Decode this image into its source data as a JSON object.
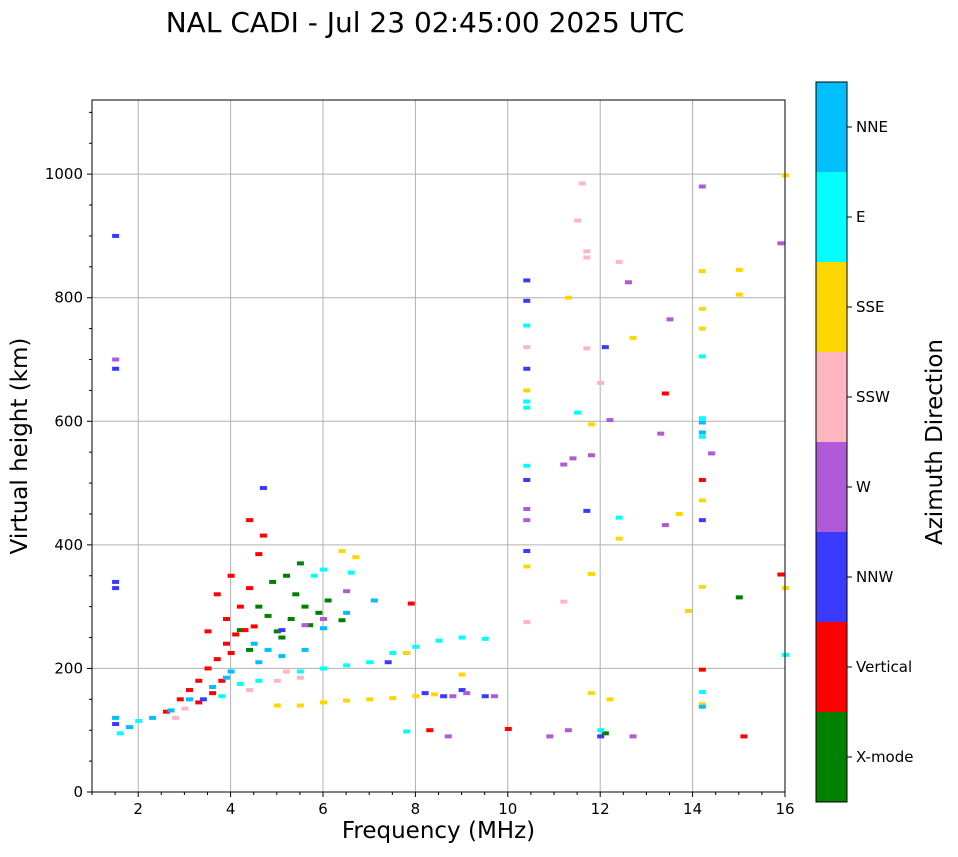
{
  "chart_data": {
    "type": "scatter",
    "title": "NAL CADI - Jul 23 02:45:00 2025 UTC",
    "xlabel": "Frequency (MHz)",
    "ylabel": "Virtual height (km)",
    "xlim": [
      1,
      16
    ],
    "ylim": [
      0,
      1120
    ],
    "xticks": [
      2,
      4,
      6,
      8,
      10,
      12,
      14,
      16
    ],
    "yticks": [
      0,
      200,
      400,
      600,
      800,
      1000
    ],
    "grid": true,
    "colorbar": {
      "label": "Azimuth Direction",
      "categories": [
        {
          "name": "X-mode",
          "color": "#008000"
        },
        {
          "name": "Vertical",
          "color": "#ff0000"
        },
        {
          "name": "NNW",
          "color": "#3a3aff"
        },
        {
          "name": "W",
          "color": "#b05ad8"
        },
        {
          "name": "SSW",
          "color": "#ffb6c1"
        },
        {
          "name": "SSE",
          "color": "#ffd700"
        },
        {
          "name": "E",
          "color": "#00ffff"
        },
        {
          "name": "NNE",
          "color": "#00bfff"
        }
      ]
    },
    "series": [
      {
        "name": "X-mode",
        "points": [
          [
            4.2,
            262
          ],
          [
            4.6,
            300
          ],
          [
            4.8,
            285
          ],
          [
            5.0,
            260
          ],
          [
            5.1,
            250
          ],
          [
            5.3,
            280
          ],
          [
            5.4,
            320
          ],
          [
            5.6,
            300
          ],
          [
            5.7,
            270
          ],
          [
            5.9,
            290
          ],
          [
            6.1,
            310
          ],
          [
            5.2,
            350
          ],
          [
            5.5,
            370
          ],
          [
            4.9,
            340
          ],
          [
            12.1,
            95
          ],
          [
            15.0,
            315
          ],
          [
            6.4,
            278
          ],
          [
            4.4,
            230
          ]
        ]
      },
      {
        "name": "Vertical",
        "points": [
          [
            2.9,
            150
          ],
          [
            3.1,
            165
          ],
          [
            3.3,
            180
          ],
          [
            3.5,
            200
          ],
          [
            3.7,
            215
          ],
          [
            3.9,
            240
          ],
          [
            4.1,
            255
          ],
          [
            4.3,
            262
          ],
          [
            4.5,
            268
          ],
          [
            3.6,
            160
          ],
          [
            3.8,
            180
          ],
          [
            4.0,
            225
          ],
          [
            4.2,
            300
          ],
          [
            4.4,
            330
          ],
          [
            4.6,
            385
          ],
          [
            4.7,
            415
          ],
          [
            4.4,
            440
          ],
          [
            4.0,
            350
          ],
          [
            3.7,
            320
          ],
          [
            3.5,
            260
          ],
          [
            3.9,
            280
          ],
          [
            7.9,
            305
          ],
          [
            8.3,
            100
          ],
          [
            10.0,
            102
          ],
          [
            13.4,
            645
          ],
          [
            14.2,
            505
          ],
          [
            14.2,
            198
          ],
          [
            15.1,
            90
          ],
          [
            15.9,
            352
          ],
          [
            2.6,
            130
          ],
          [
            3.3,
            145
          ]
        ]
      },
      {
        "name": "NNW",
        "points": [
          [
            1.5,
            340
          ],
          [
            1.5,
            330
          ],
          [
            1.5,
            900
          ],
          [
            1.5,
            685
          ],
          [
            1.5,
            110
          ],
          [
            4.7,
            492
          ],
          [
            7.4,
            210
          ],
          [
            7.8,
            225
          ],
          [
            8.2,
            160
          ],
          [
            8.6,
            155
          ],
          [
            9.0,
            165
          ],
          [
            9.5,
            155
          ],
          [
            10.4,
            828
          ],
          [
            10.4,
            795
          ],
          [
            10.4,
            685
          ],
          [
            10.4,
            505
          ],
          [
            10.4,
            390
          ],
          [
            11.7,
            455
          ],
          [
            12.1,
            720
          ],
          [
            14.2,
            440
          ],
          [
            12.0,
            90
          ],
          [
            3.4,
            150
          ],
          [
            5.1,
            262
          ]
        ]
      },
      {
        "name": "W",
        "points": [
          [
            1.5,
            700
          ],
          [
            9.1,
            160
          ],
          [
            8.8,
            155
          ],
          [
            9.7,
            155
          ],
          [
            10.4,
            440
          ],
          [
            10.4,
            458
          ],
          [
            11.2,
            530
          ],
          [
            11.4,
            540
          ],
          [
            11.8,
            545
          ],
          [
            12.2,
            602
          ],
          [
            13.3,
            580
          ],
          [
            13.4,
            432
          ],
          [
            13.5,
            765
          ],
          [
            14.2,
            980
          ],
          [
            14.4,
            548
          ],
          [
            15.9,
            888
          ],
          [
            11.3,
            100
          ],
          [
            10.9,
            90
          ],
          [
            8.7,
            90
          ],
          [
            5.6,
            270
          ],
          [
            6.0,
            280
          ],
          [
            6.5,
            325
          ],
          [
            12.7,
            90
          ],
          [
            12.6,
            825
          ]
        ]
      },
      {
        "name": "SSW",
        "points": [
          [
            11.6,
            985
          ],
          [
            11.5,
            925
          ],
          [
            11.7,
            875
          ],
          [
            11.7,
            865
          ],
          [
            12.4,
            858
          ],
          [
            11.7,
            718
          ],
          [
            12.0,
            662
          ],
          [
            10.4,
            720
          ],
          [
            10.4,
            275
          ],
          [
            11.2,
            308
          ],
          [
            5.2,
            195
          ],
          [
            5.5,
            185
          ],
          [
            5.0,
            180
          ],
          [
            4.4,
            165
          ],
          [
            2.8,
            120
          ],
          [
            3.0,
            135
          ]
        ]
      },
      {
        "name": "SSE",
        "points": [
          [
            5.0,
            140
          ],
          [
            5.5,
            140
          ],
          [
            6.0,
            145
          ],
          [
            6.5,
            148
          ],
          [
            7.0,
            150
          ],
          [
            7.5,
            152
          ],
          [
            8.0,
            155
          ],
          [
            8.4,
            158
          ],
          [
            9.0,
            190
          ],
          [
            6.7,
            380
          ],
          [
            6.4,
            390
          ],
          [
            7.8,
            225
          ],
          [
            10.4,
            650
          ],
          [
            10.4,
            365
          ],
          [
            11.3,
            800
          ],
          [
            11.8,
            595
          ],
          [
            11.8,
            353
          ],
          [
            12.4,
            410
          ],
          [
            12.7,
            735
          ],
          [
            13.7,
            450
          ],
          [
            13.9,
            293
          ],
          [
            14.2,
            843
          ],
          [
            14.2,
            782
          ],
          [
            14.2,
            750
          ],
          [
            14.2,
            472
          ],
          [
            14.2,
            332
          ],
          [
            14.2,
            142
          ],
          [
            15.0,
            845
          ],
          [
            15.0,
            805
          ],
          [
            16.0,
            998
          ],
          [
            16.0,
            330
          ],
          [
            11.8,
            160
          ],
          [
            12.2,
            150
          ]
        ]
      },
      {
        "name": "E",
        "points": [
          [
            1.6,
            95
          ],
          [
            2.0,
            115
          ],
          [
            3.8,
            155
          ],
          [
            4.2,
            175
          ],
          [
            4.6,
            180
          ],
          [
            5.5,
            195
          ],
          [
            6.0,
            200
          ],
          [
            6.5,
            205
          ],
          [
            7.0,
            210
          ],
          [
            7.5,
            225
          ],
          [
            8.0,
            235
          ],
          [
            8.5,
            245
          ],
          [
            9.0,
            250
          ],
          [
            9.5,
            248
          ],
          [
            6.6,
            355
          ],
          [
            6.0,
            360
          ],
          [
            5.8,
            350
          ],
          [
            10.4,
            755
          ],
          [
            10.4,
            632
          ],
          [
            10.4,
            622
          ],
          [
            10.4,
            528
          ],
          [
            11.5,
            614
          ],
          [
            12.4,
            444
          ],
          [
            14.2,
            705
          ],
          [
            14.2,
            605
          ],
          [
            14.2,
            575
          ],
          [
            14.2,
            162
          ],
          [
            16.0,
            222
          ],
          [
            7.8,
            98
          ],
          [
            12.0,
            100
          ]
        ]
      },
      {
        "name": "NNE",
        "points": [
          [
            1.5,
            120
          ],
          [
            1.8,
            105
          ],
          [
            2.3,
            120
          ],
          [
            2.7,
            132
          ],
          [
            3.1,
            150
          ],
          [
            3.6,
            170
          ],
          [
            4.0,
            195
          ],
          [
            4.6,
            210
          ],
          [
            5.1,
            220
          ],
          [
            5.6,
            230
          ],
          [
            6.0,
            265
          ],
          [
            6.5,
            290
          ],
          [
            7.1,
            310
          ],
          [
            4.5,
            240
          ],
          [
            4.8,
            230
          ],
          [
            3.9,
            185
          ],
          [
            14.2,
            598
          ],
          [
            14.2,
            582
          ],
          [
            14.2,
            138
          ]
        ]
      }
    ]
  }
}
